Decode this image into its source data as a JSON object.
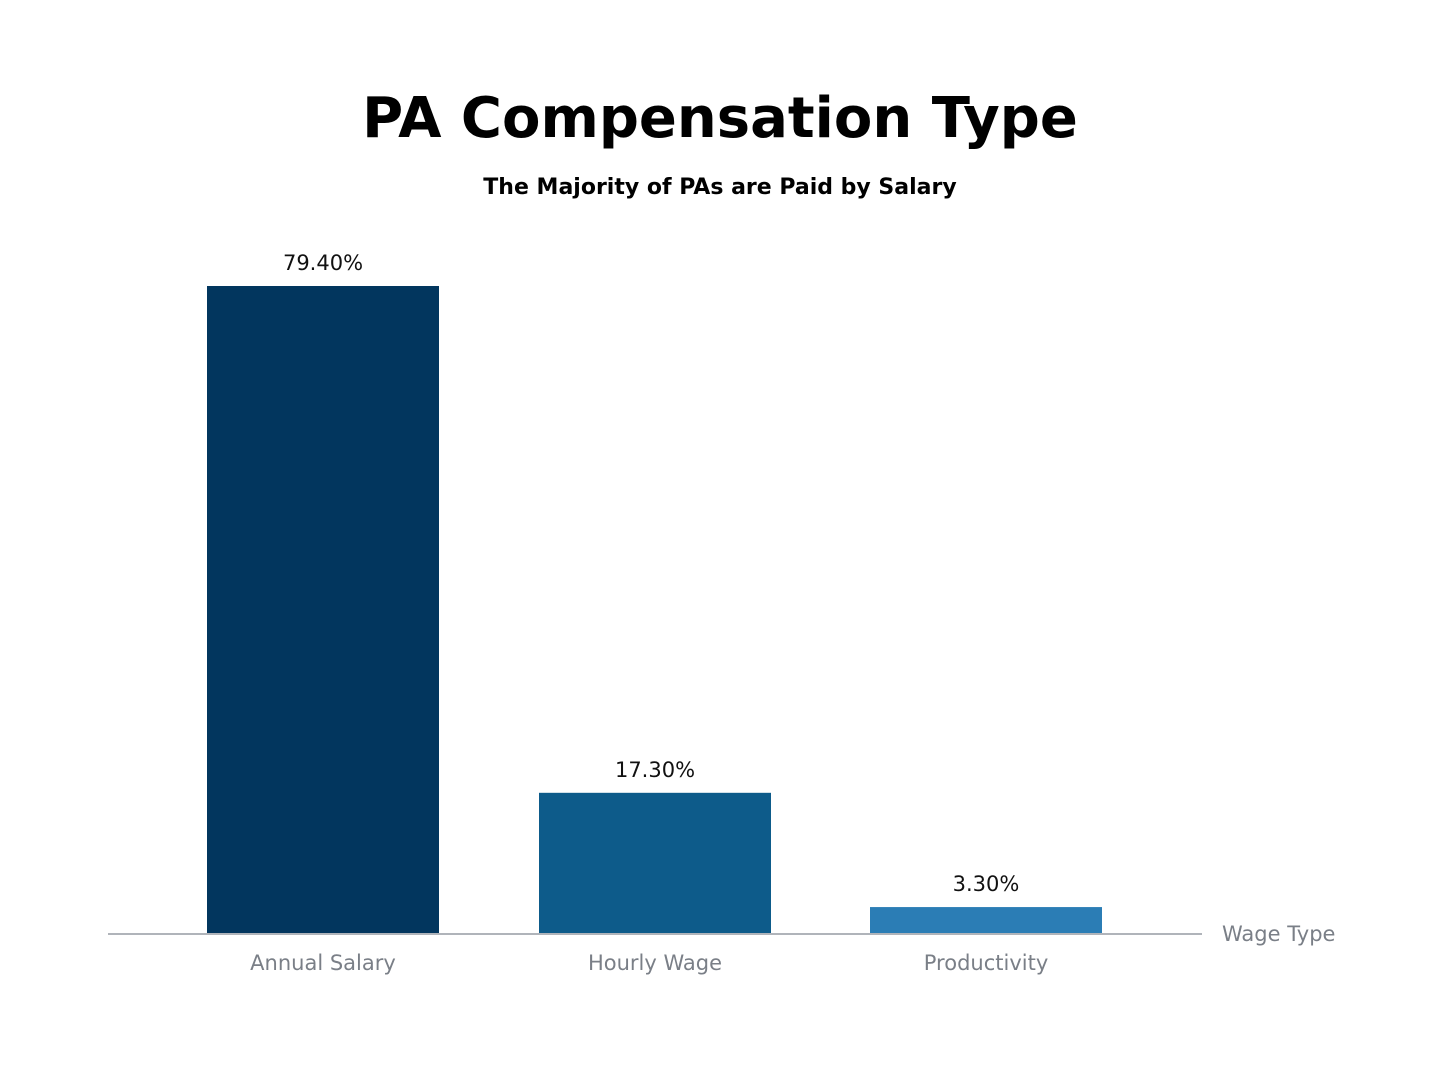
{
  "chart_data": {
    "type": "bar",
    "title": "PA Compensation Type",
    "subtitle": "The Majority of PAs are Paid by Salary",
    "xlabel": "Wage Type",
    "ylabel": "",
    "categories": [
      "Annual Salary",
      "Hourly Wage",
      "Productivity"
    ],
    "values": [
      79.4,
      17.3,
      3.3
    ],
    "data_labels": [
      "79.40%",
      "17.30%",
      "3.30%"
    ],
    "colors": [
      "#02365e",
      "#0d5b8a",
      "#2b7db5"
    ],
    "axis_color": "#b0b4ba",
    "ylim": [
      0,
      79.4
    ],
    "grid": false,
    "legend": "none"
  }
}
